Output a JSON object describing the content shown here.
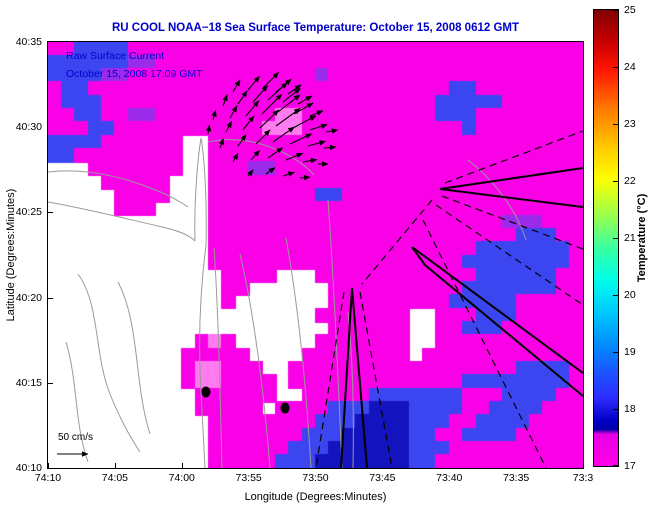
{
  "title": "RU COOL  NOAA−18  Sea Surface Temperature:  October 15, 2008 0612 GMT",
  "annotations": {
    "current_label": "Raw Surface Current",
    "current_time": "October 15, 2008 17:09 GMT",
    "scale_label": "50 cm/s"
  },
  "axes": {
    "xlabel": "Longitude (Degrees:Minutes)",
    "ylabel": "Latitude (Degrees:Minutes)",
    "x_ticks": [
      "74:10",
      "74:05",
      "74:00",
      "73:55",
      "73:50",
      "73:45",
      "73:40",
      "73:35",
      "73:3"
    ],
    "y_ticks": [
      "40:35",
      "40:30",
      "40:25",
      "40:20",
      "40:15",
      "40:10"
    ]
  },
  "colorbar": {
    "label": "Temperature (°C)",
    "ticks": [
      "25",
      "24",
      "23",
      "22",
      "21",
      "20",
      "19",
      "18",
      "17"
    ],
    "range_c": [
      17,
      25
    ],
    "gradient": [
      [
        "#7f0000",
        0
      ],
      [
        "#c80000",
        7
      ],
      [
        "#ff1400",
        13
      ],
      [
        "#ff7d00",
        22
      ],
      [
        "#ffc800",
        30
      ],
      [
        "#fdff00",
        37
      ],
      [
        "#9bff4d",
        45
      ],
      [
        "#3cff9f",
        52
      ],
      [
        "#00ffe8",
        59
      ],
      [
        "#00ccff",
        66
      ],
      [
        "#0090ff",
        73
      ],
      [
        "#1e50ff",
        80
      ],
      [
        "#2d2dff",
        85
      ],
      [
        "#0000c8",
        90
      ],
      [
        "#0000aa",
        92
      ],
      [
        "#e600e6",
        93
      ],
      [
        "#ff00e6",
        100
      ]
    ]
  },
  "chart_data": {
    "type": "heatmap",
    "title": "RU COOL  NOAA−18  Sea Surface Temperature:  October 15, 2008 0612 GMT",
    "value_label": "Sea surface temperature (°C)",
    "value_range_c": [
      17,
      25
    ],
    "x_range": [
      "74:10",
      "73:30"
    ],
    "y_range": [
      "40:10",
      "40:35"
    ],
    "dominant_temperature_c": 17.4,
    "grid_cols": 40,
    "grid_rows": 32,
    "palette": {
      "m": "#fa00e6",
      "l": "#ff7bef",
      "v": "#c816f0",
      "p": "#9a2bea",
      "b": "#3c46f0",
      "d": "#1414be",
      "c": "#6a8af5"
    },
    "sst_grid": [
      "mmbbbbmmmmmmmmmmmmmmmmmmmmmmmmmmmmmmmmmm",
      "bbbbbbppmmmmmmmmmmmmmmmmmmmmmmmmmmmmmmmm",
      "bbbbppmmmmmmmmmmmmmmpmmmmmmmmmmmmmmmmmmm",
      "mbbmmmmmmmmmmmmmmmmmmmmmmmmmmmbbmmmmmmmm",
      "mbbbmmmmmmmmmmmmmmmmmmmmmmmmmbbbbbmmmmmm",
      "mmbbmmppmmmmmmmmmllmmmmmmmmmmbbbmmmmmmmm",
      "mmmbbmmmmmmmmmmmlllmmmmmmmmmmmmbmmmmmmmm",
      "bbbbmmmmmm..mmmmmmmmmmmmmmmmmmmmmmmmmmmm",
      "bbmmmmmmmm..mmmmmmmmmmmmmmmmmmmmmmmmmmmm",
      "...mmmmmmm..mmmppmmmmmmmmmmmmmmmmmmmmmmm",
      "....mmmmm...mmmmmmmmmmmmmmmmmmmmmmmmmmmm",
      ".....mmmm...mmmmmmmmbbmmmmmmmmmmmmmmmmmm",
      ".....mmm....mmmmmmmmmmmmmmmmmmmmmmmmmmmm",
      "............mmmmmmmmmmmmmmmmmmmmmmpppmmm",
      "............mmmmmmmmmmmmmmmmmmmmmmmbbbmm",
      "............mmmmmmmmmmmmmmmmmmmmbbbbbbbm",
      "............mmmmmmmmmmmmmmmmmmmbbbbbbbbm",
      ".............mmmm...mmmmmmmmmmmmbbbbbbmm",
      ".............mm......mmmmmmmmmmbbbbbbbmm",
      ".............m.......mmmmmmmmmbbbbbmmmmm",
      "....................mmmmmmm..mmmbbbmmmmm",
      ".....................mmmmmm..mmbbbmmmmmm",
      "...........mlm......mmmmmmm..mmmmmmmmmmm",
      "..........mmmmm....mmmmmmmm.mmmmmmmmmmmm",
      "..........mllmmm..mmmmmmmmmmmmmmmmmbbbbm",
      "..........mllmmmm.mmmmmmmmmmmmmbbbbbbbbm",
      "...........mmmmmm..mmmmmbbbbbbbmmmbbbbmm",
      "...........mmmmm.mmmmbbbdddbbbbmmbbbbmmm",
      "............mmmmmmmmbbbddddbbbmmbbbbmmmm",
      "............mmmmmmmbbbdddddbbmmbbbbmmmmm",
      "............mmmmmmbbbddddddbbbmmmmmmmmmm",
      "............mmmmmbbbdddddddbbmmmmmmmmmmm"
    ],
    "coast_contours": [
      "M0,160 C35,166 75,176 110,184 C128,188 140,192 147,199",
      "M147,199 C146,165 149,120 153,96 C157,118 159,165 158,203",
      "M158,203 C152,250 150,300 153,350 C155,388 156,408 157,426",
      "M0,130 C35,126 70,133 105,147 C118,152 130,158 140,165",
      "M166,206 C170,262 172,344 174,426",
      "M192,212 C206,272 216,352 222,426",
      "M238,196 C250,262 258,342 263,426",
      "M280,158 C286,240 290,330 294,426",
      "M160,100 C188,94 216,100 242,114 C252,120 260,126 266,133",
      "M300,270 C305,320 306,375 305,426",
      "M30,232 C52,262 46,312 62,352 C70,372 80,392 92,410",
      "M70,240 C92,282 86,342 102,392",
      "M18,300 C30,340 26,380 40,420",
      "M420,118 C448,140 468,168 478,198"
    ],
    "lanes_solid": [
      "M535,126 L392,147 L535,165",
      "M535,331 L364,205 L377,223 L535,354",
      "M293,426 L304,246 L319,426"
    ],
    "lanes_dashed": [
      "M397,141 L535,89",
      "M394,154 L535,207",
      "M388,163 L535,263",
      "M375,178 L498,426",
      "M384,158 L314,242",
      "M296,250 L268,426",
      "M312,250 L344,426"
    ],
    "vectors_units": "surface current, scale arrow = 50 cm/s",
    "vectors": [
      [
        185,
        50,
        -60,
        14
      ],
      [
        200,
        48,
        -50,
        18
      ],
      [
        215,
        46,
        -45,
        22
      ],
      [
        228,
        50,
        -40,
        20
      ],
      [
        240,
        52,
        -35,
        16
      ],
      [
        175,
        64,
        -70,
        12
      ],
      [
        190,
        62,
        -55,
        16
      ],
      [
        205,
        60,
        -48,
        22
      ],
      [
        220,
        58,
        -42,
        26
      ],
      [
        235,
        60,
        -38,
        22
      ],
      [
        250,
        62,
        -30,
        16
      ],
      [
        165,
        78,
        -75,
        10
      ],
      [
        182,
        76,
        -60,
        14
      ],
      [
        198,
        74,
        -50,
        20
      ],
      [
        214,
        72,
        -45,
        28
      ],
      [
        230,
        70,
        -38,
        28
      ],
      [
        246,
        72,
        -30,
        22
      ],
      [
        262,
        74,
        -22,
        14
      ],
      [
        160,
        92,
        -80,
        9
      ],
      [
        178,
        90,
        -62,
        12
      ],
      [
        195,
        88,
        -52,
        18
      ],
      [
        212,
        86,
        -44,
        26
      ],
      [
        228,
        84,
        -36,
        30
      ],
      [
        245,
        86,
        -28,
        26
      ],
      [
        262,
        88,
        -18,
        18
      ],
      [
        278,
        90,
        -10,
        12
      ],
      [
        172,
        106,
        -70,
        10
      ],
      [
        190,
        104,
        -55,
        14
      ],
      [
        208,
        102,
        -45,
        20
      ],
      [
        225,
        100,
        -35,
        26
      ],
      [
        242,
        102,
        -25,
        24
      ],
      [
        260,
        104,
        -15,
        18
      ],
      [
        276,
        106,
        -5,
        12
      ],
      [
        185,
        120,
        -60,
        10
      ],
      [
        203,
        118,
        -48,
        13
      ],
      [
        220,
        116,
        -35,
        18
      ],
      [
        238,
        118,
        -22,
        18
      ],
      [
        255,
        120,
        -10,
        14
      ],
      [
        270,
        122,
        0,
        10
      ],
      [
        200,
        134,
        -50,
        8
      ],
      [
        218,
        132,
        -35,
        11
      ],
      [
        235,
        134,
        -18,
        12
      ],
      [
        252,
        136,
        -5,
        10
      ]
    ],
    "buoys": [
      [
        158,
        350
      ],
      [
        237,
        366
      ]
    ]
  }
}
